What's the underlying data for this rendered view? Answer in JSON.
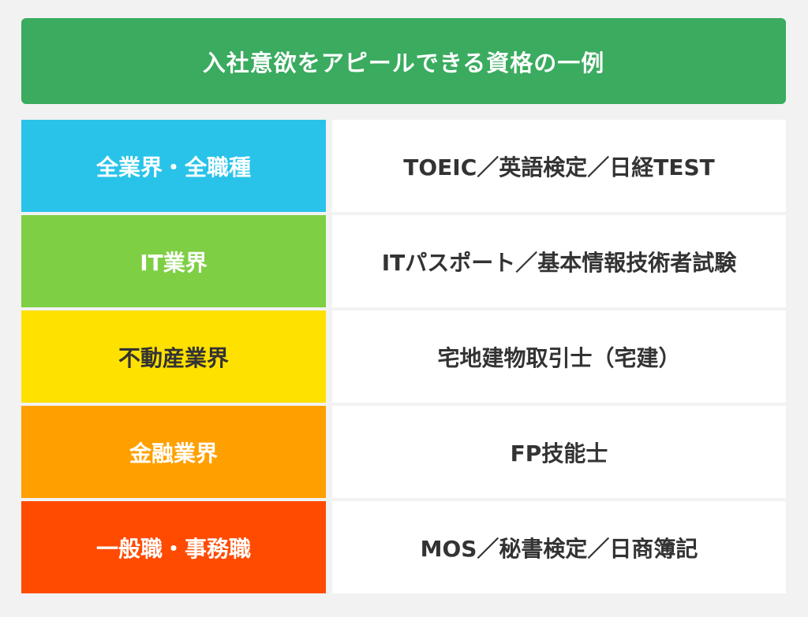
{
  "title": "入社意欲をアピールできる資格の一例",
  "rows": [
    {
      "category": "全業界・全職種",
      "qualifications": "TOEIC／英語検定／日経TEST",
      "color": "#29c3ea",
      "text_color": "#ffffff"
    },
    {
      "category": "IT業界",
      "qualifications": "ITパスポート／基本情報技術者試験",
      "color": "#7ecf44",
      "text_color": "#ffffff"
    },
    {
      "category": "不動産業界",
      "qualifications": "宅地建物取引士（宅建）",
      "color": "#ffe100",
      "text_color": "#333333"
    },
    {
      "category": "金融業界",
      "qualifications": "FP技能士",
      "color": "#ffa000",
      "text_color": "#ffffff"
    },
    {
      "category": "一般職・事務職",
      "qualifications": "MOS／秘書検定／日商簿記",
      "color": "#ff4b00",
      "text_color": "#ffffff"
    }
  ]
}
